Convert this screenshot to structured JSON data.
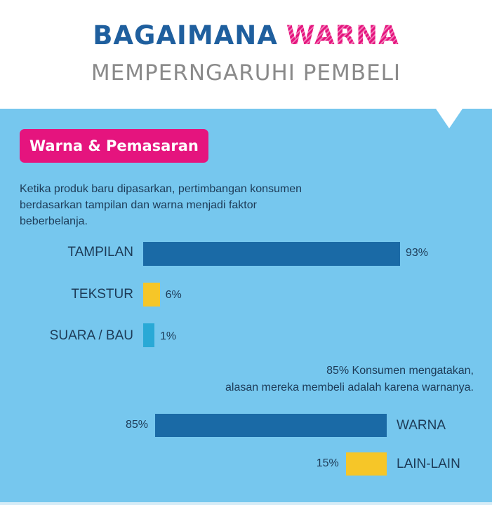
{
  "header": {
    "title_part1": "BAGAIMANA",
    "title_part2": "WARNA",
    "subtitle": "MEMPERNGARUHI PEMBELI"
  },
  "section": {
    "badge": "Warna & Pemasaran",
    "description": "Ketika produk baru dipasarkan, pertimbangan konsumen berdasarkan tampilan dan warna menjadi faktor beberbelanja.",
    "note_line1": "85% Konsumen mengatakan,",
    "note_line2": "alasan mereka membeli adalah karena warnanya."
  },
  "colors": {
    "dark_blue": "#1a6aa6",
    "yellow": "#f6c628",
    "light_blue": "#29a9d6",
    "pink": "#e5147e",
    "background": "#76c7ee"
  },
  "chart_data": [
    {
      "type": "bar",
      "orientation": "horizontal",
      "categories": [
        "TAMPILAN",
        "TEKSTUR",
        "SUARA / BAU"
      ],
      "values": [
        93,
        6,
        1
      ],
      "value_labels": [
        "93%",
        "6%",
        "1%"
      ],
      "unit": "%",
      "colors": [
        "#1a6aa6",
        "#f6c628",
        "#29a9d6"
      ],
      "xlim": [
        0,
        100
      ]
    },
    {
      "type": "bar",
      "orientation": "horizontal",
      "categories": [
        "WARNA",
        "LAIN-LAIN"
      ],
      "values": [
        85,
        15
      ],
      "value_labels": [
        "85%",
        "15%"
      ],
      "unit": "%",
      "colors": [
        "#1a6aa6",
        "#f6c628"
      ],
      "xlim": [
        0,
        100
      ],
      "bar_anchor": "right",
      "labels_position": "right"
    }
  ]
}
